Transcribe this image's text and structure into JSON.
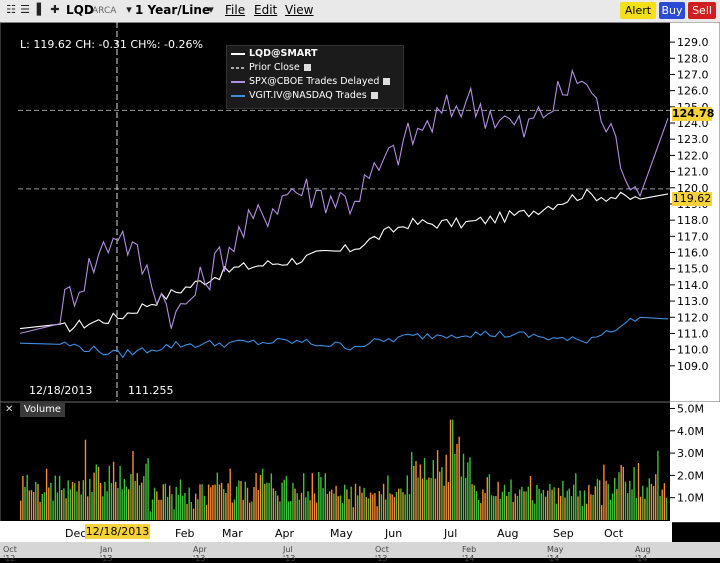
{
  "toolbar": {
    "symbol": "LQD",
    "exchange": "ARCA",
    "period": "1 Year/Line",
    "menus": [
      "File",
      "Edit",
      "View"
    ],
    "alert_label": "Alert",
    "buy_label": "Buy",
    "sell_label": "Sell"
  },
  "info": {
    "readout": "L: 119.62  CH: -0.31  CH%: -0.26%",
    "cursor_date": "12/18/2013",
    "cursor_value": "111.255",
    "x_cursor_date": "12/18/2013"
  },
  "legend": {
    "items": [
      "LQD@SMART",
      "Prior Close",
      "SPX@CBOE Trades Delayed",
      "VGIT.IV@NASDAQ Trades"
    ]
  },
  "price_tags": {
    "dashed_level": "124.78",
    "last": "119.62"
  },
  "volume": {
    "title": "Volume"
  },
  "scroll_labels": [
    "Oct '12",
    "Jan '13",
    "Apr '13",
    "Jul '13",
    "Oct '13",
    "Feb '14",
    "May '14",
    "Aug '14"
  ],
  "colors": {
    "lqd": "#ffffff",
    "spx": "#b28fe0",
    "vgit": "#3a8fe0",
    "vol_up": "#3cc23c",
    "vol_down": "#f28c3a",
    "tag": "#f5d23a"
  },
  "chart_data": [
    {
      "type": "line",
      "x": [
        "Dec '13",
        "Jan '14",
        "Feb '14",
        "Mar '14",
        "Apr '14",
        "May '14",
        "Jun '14",
        "Jul '14",
        "Aug '14",
        "Sep '14",
        "Oct '14"
      ],
      "xlim": [
        "Nov '13",
        "Nov '14"
      ],
      "ylim": [
        108.0,
        129.5
      ],
      "yticks": [
        109.0,
        110.0,
        111.0,
        112.0,
        113.0,
        114.0,
        115.0,
        116.0,
        117.0,
        118.0,
        119.0,
        120.0,
        121.0,
        122.0,
        123.0,
        124.0,
        125.0,
        126.0,
        127.0,
        128.0,
        129.0
      ],
      "series": [
        {
          "name": "LQD@SMART",
          "values": [
            111.3,
            112.0,
            113.6,
            115.0,
            115.5,
            116.2,
            117.8,
            117.8,
            118.4,
            119.6,
            119.3
          ]
        },
        {
          "name": "SPX@CBOE Trades Delayed",
          "values": [
            112.5,
            117.5,
            112.0,
            116.8,
            120.0,
            119.2,
            123.0,
            125.5,
            123.5,
            127.0,
            119.5
          ]
        },
        {
          "name": "VGIT.IV@NASDAQ Trades",
          "values": [
            110.4,
            109.7,
            110.3,
            110.4,
            110.5,
            110.2,
            110.8,
            111.0,
            110.9,
            110.5,
            112.0
          ]
        }
      ],
      "reference_lines": [
        {
          "name": "Prior Close",
          "value": 119.93
        },
        {
          "value": 124.78
        }
      ],
      "grid": false,
      "legend": "top-center"
    },
    {
      "type": "bar",
      "title": "Volume",
      "x": [
        "Dec '13",
        "Feb '14",
        "Mar '14",
        "Apr '14",
        "May '14",
        "Jun '14",
        "Jul '14",
        "Aug '14",
        "Sep '14",
        "Oct '14"
      ],
      "ylim": [
        0,
        5.2
      ],
      "yticks": [
        "1.0M",
        "2.0M",
        "3.0M",
        "4.0M",
        "5.0M"
      ],
      "ytick_values": [
        1.0,
        2.0,
        3.0,
        4.0,
        5.0
      ],
      "unit": "M",
      "values": [
        2.3,
        3.6,
        1.6,
        2.3,
        2.1,
        2.0,
        4.5,
        2.0,
        2.1,
        3.1
      ]
    }
  ]
}
